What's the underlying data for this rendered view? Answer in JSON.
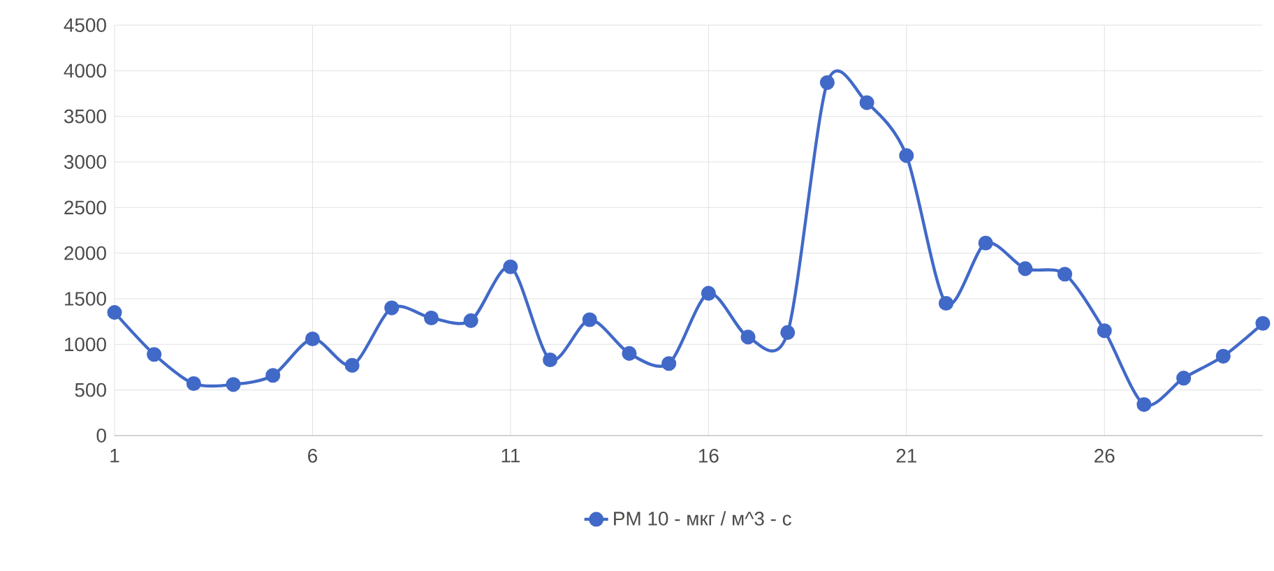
{
  "chart_data": {
    "type": "line",
    "x": [
      1,
      2,
      3,
      4,
      5,
      6,
      7,
      8,
      9,
      10,
      11,
      12,
      13,
      14,
      15,
      16,
      17,
      18,
      19,
      20,
      21,
      22,
      23,
      24,
      25,
      26,
      27,
      28,
      29,
      30
    ],
    "series": [
      {
        "name": "PM 10 - мкг / м^3 - с",
        "color": "#4169c8",
        "values": [
          1350,
          890,
          570,
          560,
          660,
          1060,
          770,
          1400,
          1290,
          1260,
          1850,
          830,
          1270,
          900,
          790,
          1560,
          1080,
          1130,
          3870,
          3650,
          3070,
          1450,
          2110,
          1830,
          1770,
          1150,
          340,
          630,
          870,
          1230
        ]
      }
    ],
    "xlim": [
      1,
      30
    ],
    "xticks": [
      1,
      6,
      11,
      16,
      21,
      26
    ],
    "ylim": [
      0,
      4500
    ],
    "yticks": [
      0,
      500,
      1000,
      1500,
      2000,
      2500,
      3000,
      3500,
      4000,
      4500
    ],
    "grid": true,
    "legend": "bottom",
    "marker": "circle",
    "line_style": "solid"
  }
}
